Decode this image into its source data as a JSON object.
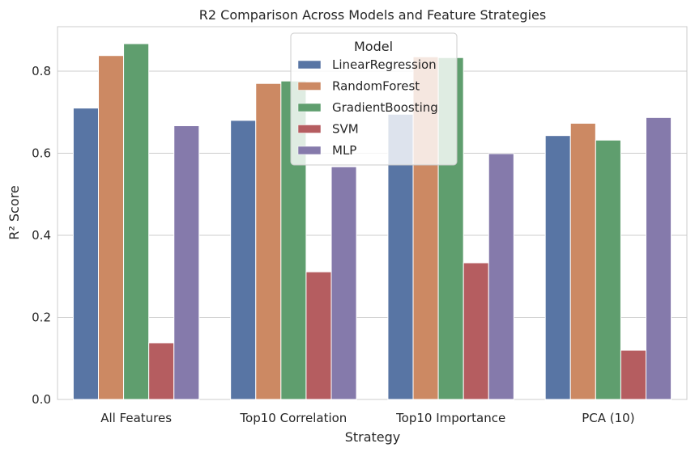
{
  "chart_data": {
    "type": "bar",
    "title": "R2 Comparison Across Models and Feature Strategies",
    "xlabel": "Strategy",
    "ylabel": "R² Score",
    "ylim": [
      0,
      0.9
    ],
    "yticks": [
      "0.0",
      "0.2",
      "0.4",
      "0.6",
      "0.8"
    ],
    "grid": true,
    "legend": {
      "title": "Model",
      "placement": "top-center"
    },
    "categories": [
      "All Features",
      "Top10 Correlation",
      "Top10 Importance",
      "PCA (10)"
    ],
    "series": [
      {
        "name": "LinearRegression",
        "color": "#5875a4",
        "values": [
          0.71,
          0.68,
          0.695,
          0.643
        ]
      },
      {
        "name": "RandomForest",
        "color": "#cc8963",
        "values": [
          0.838,
          0.77,
          0.835,
          0.673
        ]
      },
      {
        "name": "GradientBoosting",
        "color": "#5f9e6e",
        "values": [
          0.867,
          0.776,
          0.833,
          0.632
        ]
      },
      {
        "name": "SVM",
        "color": "#b55d60",
        "values": [
          0.138,
          0.311,
          0.333,
          0.12
        ]
      },
      {
        "name": "MLP",
        "color": "#857aab",
        "values": [
          0.667,
          0.567,
          0.599,
          0.687
        ]
      }
    ]
  }
}
